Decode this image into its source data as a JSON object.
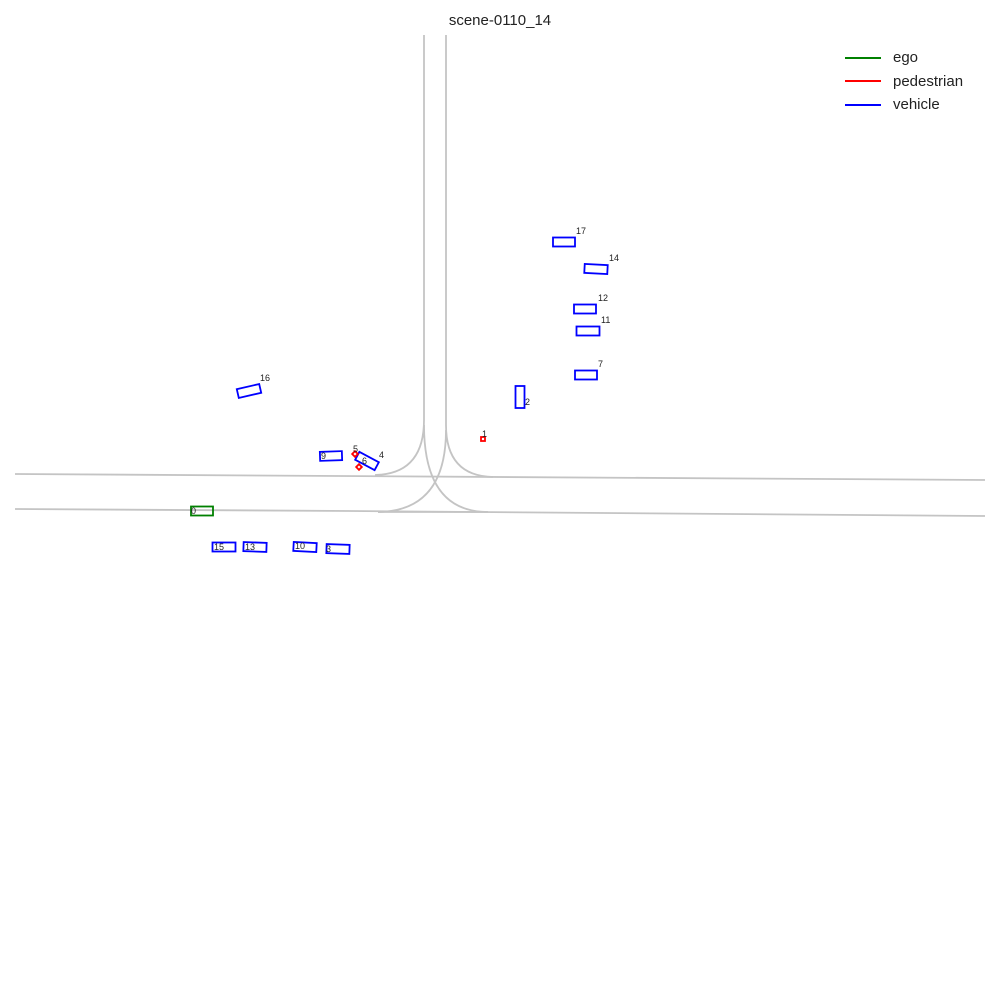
{
  "title": "scene-0110_14",
  "legend": [
    {
      "label": "ego",
      "color": "#008000"
    },
    {
      "label": "pedestrian",
      "color": "#ff0000"
    },
    {
      "label": "vehicle",
      "color": "#0000ff"
    }
  ],
  "colors": {
    "lane": "#c4c4c4",
    "ego": "#008000",
    "pedestrian": "#ff0000",
    "vehicle": "#0000ff"
  },
  "agents": [
    {
      "id": "0",
      "label": "0",
      "type": "ego"
    },
    {
      "id": "1",
      "label": "1",
      "type": "pedestrian"
    },
    {
      "id": "2",
      "label": "2",
      "type": "vehicle"
    },
    {
      "id": "3",
      "label": "3",
      "type": "vehicle"
    },
    {
      "id": "4",
      "label": "4",
      "type": "vehicle"
    },
    {
      "id": "5",
      "label": "5",
      "type": "pedestrian"
    },
    {
      "id": "6",
      "label": "6",
      "type": "pedestrian"
    },
    {
      "id": "7",
      "label": "7",
      "type": "vehicle"
    },
    {
      "id": "9",
      "label": "9",
      "type": "vehicle"
    },
    {
      "id": "10",
      "label": "10",
      "type": "vehicle"
    },
    {
      "id": "11",
      "label": "11",
      "type": "vehicle"
    },
    {
      "id": "12",
      "label": "12",
      "type": "vehicle"
    },
    {
      "id": "13",
      "label": "13",
      "type": "vehicle"
    },
    {
      "id": "14",
      "label": "14",
      "type": "vehicle"
    },
    {
      "id": "15",
      "label": "15",
      "type": "vehicle"
    },
    {
      "id": "16",
      "label": "16",
      "type": "vehicle"
    },
    {
      "id": "17",
      "label": "17",
      "type": "vehicle"
    }
  ]
}
